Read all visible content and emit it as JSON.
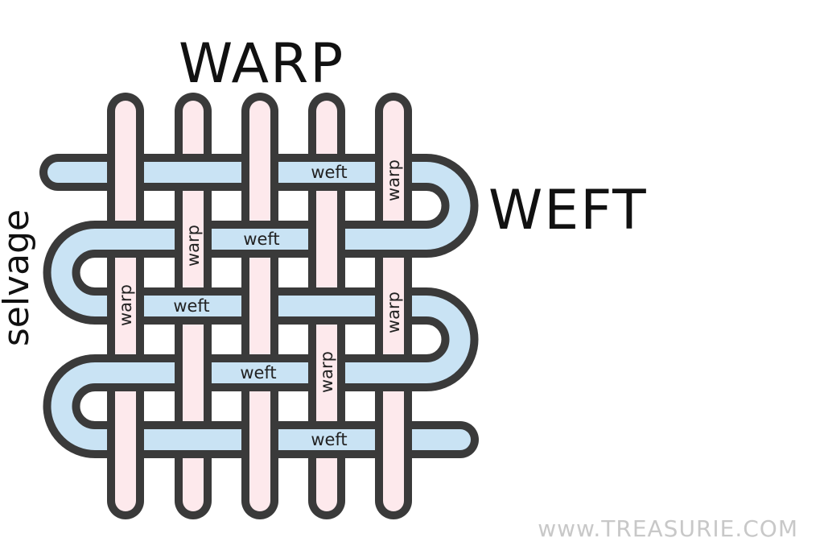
{
  "headings": {
    "warp": "WARP",
    "weft": "WEFT",
    "selvage": "selvage"
  },
  "labels": {
    "weft": "weft",
    "warp": "warp"
  },
  "watermark": "www.TREASURIE.COM",
  "colors": {
    "outline": "#3a3a3a",
    "warp_fill": "#fde9ec",
    "weft_fill": "#c9e3f4",
    "text": "#111111",
    "watermark": "#c8c8c8"
  }
}
